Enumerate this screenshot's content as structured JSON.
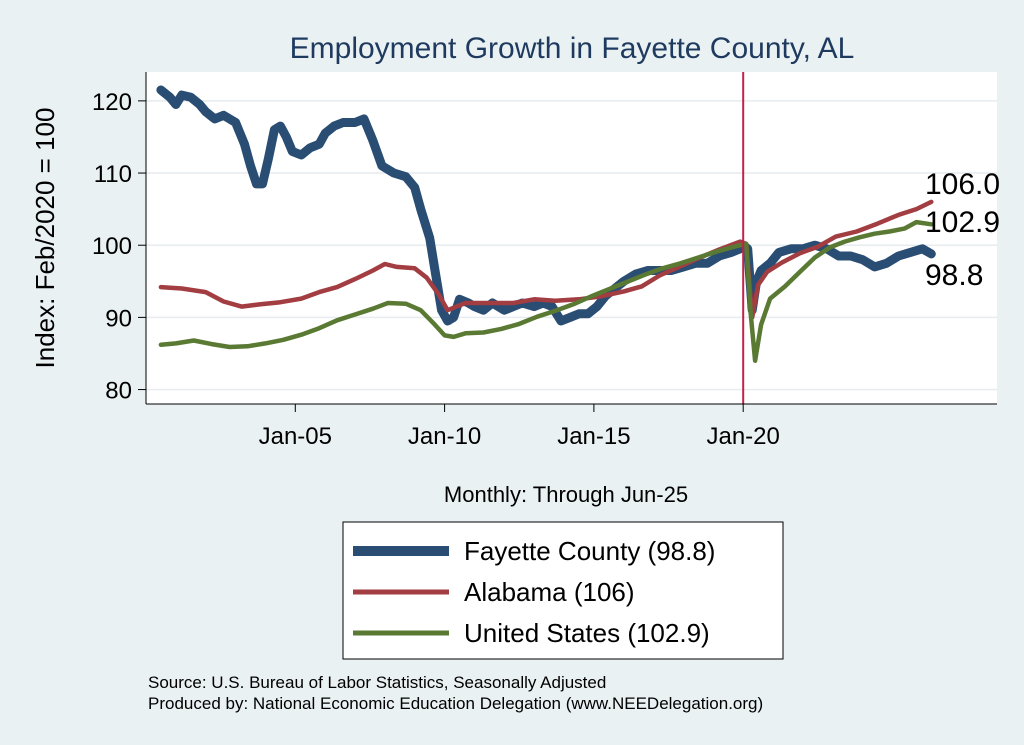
{
  "chart_data": {
    "type": "line",
    "title": "Employment Growth in Fayette  County, AL",
    "ylabel": "Index: Feb/2020 = 100",
    "xlabel": "Monthly: Through Jun-25",
    "ylim": [
      78,
      124
    ],
    "yticks": [
      80,
      90,
      100,
      110,
      120
    ],
    "xlim": [
      2000.0,
      2028.5
    ],
    "xticks": [
      {
        "label": "Jan-05",
        "value": 2005.0
      },
      {
        "label": "Jan-10",
        "value": 2010.0
      },
      {
        "label": "Jan-15",
        "value": 2015.0
      },
      {
        "label": "Jan-20",
        "value": 2020.0
      }
    ],
    "reference_line_x": 2020.0,
    "series": [
      {
        "name": "Fayette  County",
        "legend": "Fayette  County (98.8)",
        "end_label": "98.8",
        "color": "#2a4d73",
        "points": [
          [
            2000.5,
            121.5
          ],
          [
            2000.8,
            120.5
          ],
          [
            2001.0,
            119.5
          ],
          [
            2001.2,
            120.8
          ],
          [
            2001.5,
            120.5
          ],
          [
            2001.8,
            119.5
          ],
          [
            2002.0,
            118.5
          ],
          [
            2002.3,
            117.5
          ],
          [
            2002.6,
            118.0
          ],
          [
            2003.0,
            117.0
          ],
          [
            2003.3,
            114.0
          ],
          [
            2003.5,
            111.0
          ],
          [
            2003.7,
            108.5
          ],
          [
            2003.9,
            108.5
          ],
          [
            2004.1,
            112.0
          ],
          [
            2004.3,
            116.0
          ],
          [
            2004.5,
            116.5
          ],
          [
            2004.7,
            115.0
          ],
          [
            2004.9,
            113.0
          ],
          [
            2005.2,
            112.5
          ],
          [
            2005.5,
            113.5
          ],
          [
            2005.8,
            114.0
          ],
          [
            2006.0,
            115.5
          ],
          [
            2006.3,
            116.5
          ],
          [
            2006.6,
            117.0
          ],
          [
            2007.0,
            117.0
          ],
          [
            2007.3,
            117.5
          ],
          [
            2007.6,
            114.5
          ],
          [
            2007.9,
            111.0
          ],
          [
            2008.3,
            110.0
          ],
          [
            2008.7,
            109.5
          ],
          [
            2009.0,
            108.0
          ],
          [
            2009.2,
            105.0
          ],
          [
            2009.5,
            101.0
          ],
          [
            2009.7,
            96.0
          ],
          [
            2009.9,
            91.0
          ],
          [
            2010.1,
            89.5
          ],
          [
            2010.3,
            90.0
          ],
          [
            2010.5,
            92.5
          ],
          [
            2010.8,
            92.0
          ],
          [
            2011.0,
            91.5
          ],
          [
            2011.3,
            91.0
          ],
          [
            2011.6,
            92.0
          ],
          [
            2012.0,
            91.0
          ],
          [
            2012.3,
            91.5
          ],
          [
            2012.6,
            92.0
          ],
          [
            2013.0,
            91.5
          ],
          [
            2013.3,
            92.0
          ],
          [
            2013.6,
            91.5
          ],
          [
            2013.9,
            89.5
          ],
          [
            2014.2,
            90.0
          ],
          [
            2014.5,
            90.5
          ],
          [
            2014.8,
            90.5
          ],
          [
            2015.1,
            91.5
          ],
          [
            2015.4,
            93.0
          ],
          [
            2015.7,
            94.0
          ],
          [
            2016.0,
            95.0
          ],
          [
            2016.4,
            96.0
          ],
          [
            2016.8,
            96.5
          ],
          [
            2017.2,
            96.5
          ],
          [
            2017.6,
            96.5
          ],
          [
            2018.0,
            97.0
          ],
          [
            2018.4,
            97.5
          ],
          [
            2018.8,
            97.5
          ],
          [
            2019.2,
            98.5
          ],
          [
            2019.6,
            99.0
          ],
          [
            2019.9,
            99.5
          ],
          [
            2020.0,
            100.0
          ],
          [
            2020.15,
            99.5
          ],
          [
            2020.3,
            91.0
          ],
          [
            2020.45,
            95.0
          ],
          [
            2020.6,
            96.5
          ],
          [
            2020.9,
            97.5
          ],
          [
            2021.2,
            99.0
          ],
          [
            2021.6,
            99.5
          ],
          [
            2022.0,
            99.5
          ],
          [
            2022.4,
            100.0
          ],
          [
            2022.8,
            99.5
          ],
          [
            2023.2,
            98.5
          ],
          [
            2023.6,
            98.5
          ],
          [
            2024.0,
            98.0
          ],
          [
            2024.4,
            97.0
          ],
          [
            2024.8,
            97.5
          ],
          [
            2025.2,
            98.5
          ],
          [
            2025.6,
            99.0
          ],
          [
            2026.0,
            99.5
          ],
          [
            2026.3,
            98.8
          ]
        ]
      },
      {
        "name": "Alabama",
        "legend": "Alabama (106)",
        "end_label": "106.0",
        "color": "#a23d42",
        "points": [
          [
            2000.5,
            94.2
          ],
          [
            2001.2,
            94.0
          ],
          [
            2002.0,
            93.5
          ],
          [
            2002.6,
            92.2
          ],
          [
            2003.2,
            91.5
          ],
          [
            2003.8,
            91.8
          ],
          [
            2004.5,
            92.1
          ],
          [
            2005.2,
            92.6
          ],
          [
            2005.8,
            93.5
          ],
          [
            2006.4,
            94.2
          ],
          [
            2007.0,
            95.3
          ],
          [
            2007.6,
            96.5
          ],
          [
            2008.0,
            97.4
          ],
          [
            2008.4,
            97.0
          ],
          [
            2009.0,
            96.8
          ],
          [
            2009.4,
            95.5
          ],
          [
            2009.8,
            93.2
          ],
          [
            2010.1,
            91.0
          ],
          [
            2010.4,
            91.5
          ],
          [
            2010.7,
            92.0
          ],
          [
            2011.5,
            92.0
          ],
          [
            2012.3,
            92.0
          ],
          [
            2013.0,
            92.5
          ],
          [
            2013.7,
            92.3
          ],
          [
            2014.5,
            92.5
          ],
          [
            2015.2,
            92.9
          ],
          [
            2016.0,
            93.6
          ],
          [
            2016.6,
            94.3
          ],
          [
            2017.2,
            95.8
          ],
          [
            2017.8,
            96.9
          ],
          [
            2018.5,
            98.2
          ],
          [
            2019.2,
            99.4
          ],
          [
            2019.9,
            100.5
          ],
          [
            2020.1,
            100.2
          ],
          [
            2020.3,
            90.0
          ],
          [
            2020.5,
            94.5
          ],
          [
            2020.8,
            96.3
          ],
          [
            2021.3,
            97.6
          ],
          [
            2021.9,
            98.9
          ],
          [
            2022.5,
            99.8
          ],
          [
            2023.1,
            101.2
          ],
          [
            2023.8,
            101.9
          ],
          [
            2024.5,
            103.0
          ],
          [
            2025.2,
            104.2
          ],
          [
            2025.8,
            105.0
          ],
          [
            2026.3,
            106.0
          ]
        ]
      },
      {
        "name": "United States",
        "legend": "United States (102.9)",
        "end_label": "102.9",
        "color": "#5a7a34",
        "points": [
          [
            2000.5,
            86.2
          ],
          [
            2001.0,
            86.4
          ],
          [
            2001.6,
            86.8
          ],
          [
            2002.2,
            86.3
          ],
          [
            2002.8,
            85.9
          ],
          [
            2003.4,
            86.0
          ],
          [
            2004.0,
            86.4
          ],
          [
            2004.6,
            86.9
          ],
          [
            2005.2,
            87.6
          ],
          [
            2005.8,
            88.5
          ],
          [
            2006.4,
            89.6
          ],
          [
            2007.0,
            90.4
          ],
          [
            2007.6,
            91.2
          ],
          [
            2008.1,
            92.0
          ],
          [
            2008.7,
            91.9
          ],
          [
            2009.2,
            91.0
          ],
          [
            2009.6,
            89.3
          ],
          [
            2010.0,
            87.5
          ],
          [
            2010.3,
            87.3
          ],
          [
            2010.7,
            87.8
          ],
          [
            2011.3,
            87.9
          ],
          [
            2011.9,
            88.4
          ],
          [
            2012.5,
            89.1
          ],
          [
            2013.1,
            90.1
          ],
          [
            2013.7,
            90.9
          ],
          [
            2014.3,
            91.8
          ],
          [
            2014.9,
            92.9
          ],
          [
            2015.5,
            93.9
          ],
          [
            2016.1,
            94.9
          ],
          [
            2016.7,
            95.9
          ],
          [
            2017.3,
            96.8
          ],
          [
            2017.9,
            97.5
          ],
          [
            2018.5,
            98.3
          ],
          [
            2019.1,
            99.1
          ],
          [
            2019.7,
            99.8
          ],
          [
            2020.1,
            100.2
          ],
          [
            2020.25,
            90.5
          ],
          [
            2020.4,
            84.0
          ],
          [
            2020.6,
            89.0
          ],
          [
            2020.9,
            92.6
          ],
          [
            2021.4,
            94.3
          ],
          [
            2021.9,
            96.3
          ],
          [
            2022.4,
            98.3
          ],
          [
            2022.9,
            99.7
          ],
          [
            2023.4,
            100.5
          ],
          [
            2023.9,
            101.1
          ],
          [
            2024.4,
            101.6
          ],
          [
            2024.9,
            101.9
          ],
          [
            2025.4,
            102.3
          ],
          [
            2025.8,
            103.2
          ],
          [
            2026.3,
            102.9
          ]
        ]
      }
    ],
    "legend_position": "bottom",
    "source_note": "Source: U.S. Bureau of Labor Statistics, Seasonally Adjusted",
    "producer_note": "Produced by: National Economic Education Delegation (www.NEEDelegation.org)"
  }
}
